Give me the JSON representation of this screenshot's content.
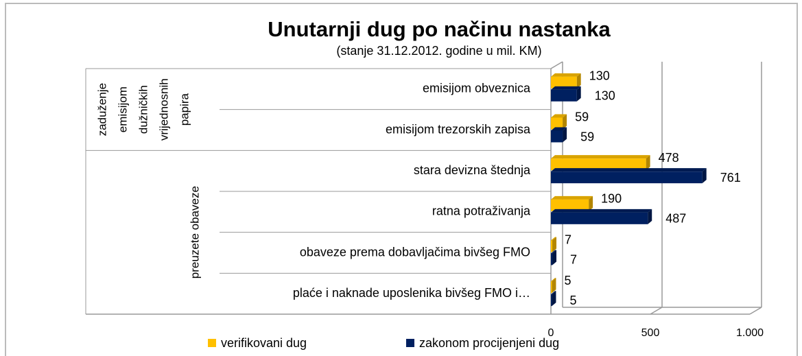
{
  "chart_data": {
    "type": "bar",
    "orientation": "horizontal",
    "title": "Unutarnji dug po načinu nastanka",
    "subtitle": "(stanje 31.12.2012. godine u mil. KM)",
    "categories": [
      "emisijom obveznica",
      "emisijom trezorskih zapisa",
      "stara devizna štednja",
      "ratna potraživanja",
      "obaveze prema dobavljačima bivšeg FMO",
      "plaće i naknade uposlenika bivšeg FMO i…"
    ],
    "groups": [
      {
        "lines": [
          "zaduženje",
          "emisijom",
          "dužničkih",
          "vrijednosnih",
          "papira"
        ]
      },
      {
        "lines": [
          "preuzete obaveze"
        ]
      }
    ],
    "series": [
      {
        "name": "verifikovani dug",
        "color": "#ffc000",
        "values": [
          130,
          59,
          478,
          190,
          7,
          5
        ]
      },
      {
        "name": "zakonom procijenjeni dug",
        "color": "#002060",
        "values": [
          130,
          59,
          761,
          487,
          7,
          5
        ]
      }
    ],
    "xlim": [
      0,
      1000
    ],
    "xticks": [
      0,
      500,
      {
        "value": 1000,
        "label": "1.000"
      }
    ],
    "grid": true,
    "legend": "bottom"
  }
}
